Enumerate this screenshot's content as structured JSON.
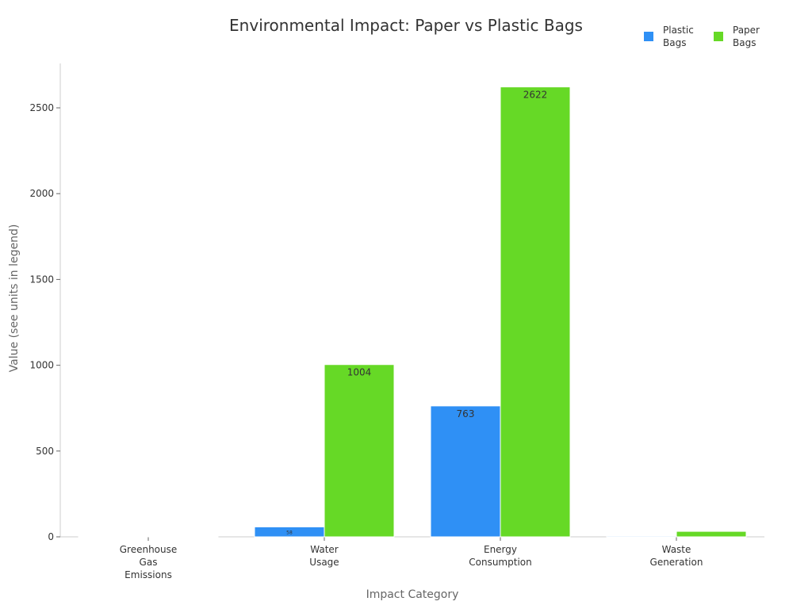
{
  "chart_data": {
    "type": "bar",
    "title": "Environmental Impact: Paper vs Plastic Bags",
    "xlabel": "Impact Category",
    "ylabel": "Value (see units in legend)",
    "categories": [
      "Greenhouse Gas Emissions",
      "Water Usage",
      "Energy Consumption",
      "Waste Generation"
    ],
    "category_lines": [
      [
        "Greenhouse",
        "Gas",
        "Emissions"
      ],
      [
        "Water",
        "Usage"
      ],
      [
        "Energy",
        "Consumption"
      ],
      [
        "Waste",
        "Generation"
      ]
    ],
    "series": [
      {
        "name": "Plastic Bags",
        "color": "#2f90f5",
        "values": [
          0.5,
          58,
          763,
          5
        ]
      },
      {
        "name": "Paper Bags",
        "color": "#66d926",
        "values": [
          1,
          1004,
          2622,
          32
        ]
      }
    ],
    "ylim": [
      0,
      2760
    ],
    "yticks": [
      0,
      500,
      1000,
      1500,
      2000,
      2500
    ],
    "grid": false,
    "legend_position": "top-right"
  },
  "legend": {
    "items": [
      {
        "label": "Plastic Bags",
        "lines": [
          "Plastic",
          "Bags"
        ]
      },
      {
        "label": "Paper Bags",
        "lines": [
          "Paper",
          "Bags"
        ]
      }
    ]
  }
}
